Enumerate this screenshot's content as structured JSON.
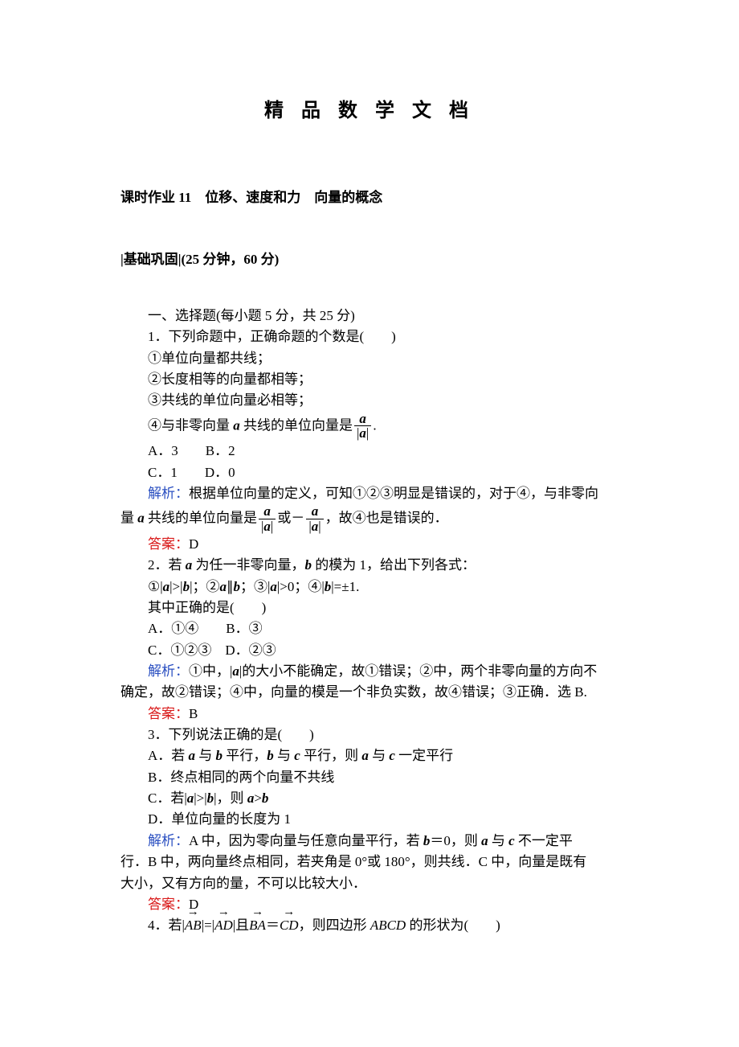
{
  "colors": {
    "text": "#000000",
    "blue": "#2a4fc1",
    "red": "#d91a1a",
    "bg": "#ffffff"
  },
  "fonts": {
    "body_family": "SimSun",
    "body_size_pt": 12,
    "title_size_pt": 18
  },
  "doc_title": "精 品 数 学 文 档",
  "chapter": "课时作业 11　位移、速度和力　向量的概念",
  "section_head": "|基础巩固|(25 分钟，60 分)",
  "section1_title": "一、选择题(每小题 5 分，共 25 分)",
  "q1": {
    "stem": "1．下列命题中，正确命题的个数是(　　)",
    "s1": "①单位向量都共线；",
    "s2": "②长度相等的向量都相等；",
    "s3": "③共线的单位向量必相等；",
    "s4_prefix": "④与非零向量 ",
    "s4_mid": " 共线的单位向量是",
    "s4_suffix": ".",
    "optA": "A．3　　B．2",
    "optC": "C．1　　D．0",
    "analysis_label": "解析：",
    "analysis_a": "根据单位向量的定义，可知①②③明显是错误的，对于④，与非零向",
    "analysis_b_pre": "量 ",
    "analysis_b_mid": " 共线的单位向量是",
    "analysis_b_or": "或－",
    "analysis_b_tail": "，故④也是错误的．",
    "answer_label": "答案：",
    "answer": "D"
  },
  "q2": {
    "stem_pre": "2．若 ",
    "stem_mid": " 为任一非零向量，",
    "stem_bmid": " 的模为 1，给出下列各式：",
    "line2_p1": "①|",
    "line2_p2": "|>|",
    "line2_p3": "|；②",
    "line2_p4": "∥",
    "line2_p5": "；③|",
    "line2_p6": "|>0；④|",
    "line2_p7": "|=±1.",
    "line3": "其中正确的是(　　)",
    "optA": "A．①④　　B．③",
    "optC": "C．①②③　D．②③",
    "analysis_label": "解析：",
    "analysis_a_p1": "①中，|",
    "analysis_a_p2": "|的大小不能确定，故①错误；②中，两个非零向量的方向不",
    "analysis_b": "确定，故②错误；④中，向量的模是一个非负实数，故④错误；③正确．选 B.",
    "answer_label": "答案：",
    "answer": "B"
  },
  "q3": {
    "stem": "3．下列说法正确的是(　　)",
    "A_pre": "A．若 ",
    "A_mid1": " 与 ",
    "A_mid2": " 平行，",
    "A_mid3": " 与 ",
    "A_mid4": " 平行，则 ",
    "A_mid5": " 与 ",
    "A_tail": " 一定平行",
    "B": "B．终点相同的两个向量不共线",
    "C_pre": "C．若|",
    "C_mid": "|>|",
    "C_mid2": "|，则 ",
    "C_gt": ">",
    "D": "D．单位向量的长度为 1",
    "analysis_label": "解析：",
    "analysis_a_pre": "A 中，因为零向量与任意向量平行，若 ",
    "analysis_a_mid": "＝0，则 ",
    "analysis_a_mid2": " 与 ",
    "analysis_a_tail": " 不一定平",
    "analysis_b": "行．B 中，两向量终点相同，若夹角是 0°或 180°，则共线．C 中，向量是既有",
    "analysis_c": "大小，又有方向的量，不可以比较大小．",
    "answer_label": "答案：",
    "answer": "D"
  },
  "q4": {
    "pre": "4．若|",
    "mid1": "|=|",
    "mid2": "|且",
    "mid3": "＝",
    "tail": "，则四边形 ",
    "abcd": "ABCD",
    "shape": " 的形状为(　　)",
    "vec_AB": "AB",
    "vec_AD": "AD",
    "vec_BA": "BA",
    "vec_CD": "CD",
    "arrow": "→"
  },
  "sym": {
    "a": "a",
    "b": "b",
    "c": "c"
  }
}
